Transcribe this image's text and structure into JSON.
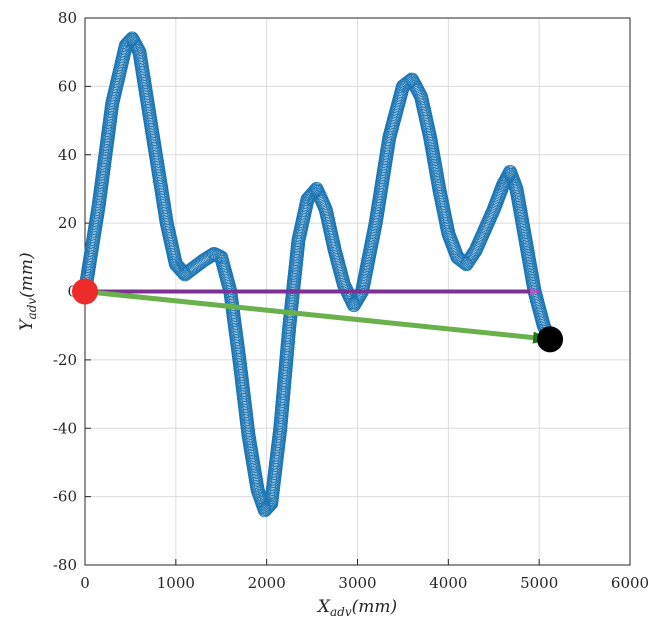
{
  "chart_data": {
    "type": "scatter",
    "xlabel": {
      "main": "X",
      "sub": "adv",
      "unit": "(mm)"
    },
    "ylabel": {
      "main": "Y",
      "sub": "adv",
      "unit": "(mm)"
    },
    "xlim": [
      0,
      6000
    ],
    "ylim": [
      -80,
      80
    ],
    "xticks": [
      0,
      1000,
      2000,
      3000,
      4000,
      5000,
      6000
    ],
    "yticks": [
      80,
      60,
      40,
      20,
      0,
      -20,
      -40,
      -60,
      -80
    ],
    "grid": true,
    "series": [
      {
        "marker": "open-circle",
        "color": "#1f77b4",
        "keypoints": [
          [
            0,
            0
          ],
          [
            150,
            25
          ],
          [
            300,
            55
          ],
          [
            450,
            72
          ],
          [
            520,
            74
          ],
          [
            600,
            70
          ],
          [
            750,
            45
          ],
          [
            900,
            20
          ],
          [
            1000,
            8
          ],
          [
            1100,
            5
          ],
          [
            1200,
            7
          ],
          [
            1300,
            9
          ],
          [
            1420,
            11
          ],
          [
            1500,
            10
          ],
          [
            1600,
            0
          ],
          [
            1700,
            -20
          ],
          [
            1800,
            -42
          ],
          [
            1900,
            -58
          ],
          [
            1980,
            -64
          ],
          [
            2050,
            -62
          ],
          [
            2150,
            -40
          ],
          [
            2250,
            -10
          ],
          [
            2350,
            15
          ],
          [
            2450,
            27
          ],
          [
            2550,
            30
          ],
          [
            2650,
            24
          ],
          [
            2750,
            12
          ],
          [
            2850,
            2
          ],
          [
            2960,
            -4
          ],
          [
            3050,
            0
          ],
          [
            3200,
            20
          ],
          [
            3350,
            45
          ],
          [
            3500,
            60
          ],
          [
            3600,
            62
          ],
          [
            3700,
            57
          ],
          [
            3800,
            45
          ],
          [
            3900,
            30
          ],
          [
            4000,
            17
          ],
          [
            4100,
            10
          ],
          [
            4200,
            8
          ],
          [
            4300,
            12
          ],
          [
            4400,
            18
          ],
          [
            4500,
            24
          ],
          [
            4600,
            31
          ],
          [
            4680,
            35
          ],
          [
            4750,
            30
          ],
          [
            4850,
            15
          ],
          [
            4950,
            0
          ],
          [
            5050,
            -10
          ],
          [
            5120,
            -14
          ]
        ]
      }
    ],
    "start_point": {
      "x": 0,
      "y": 0,
      "color": "#ee2b2b"
    },
    "end_point": {
      "x": 5120,
      "y": -14,
      "color": "#000000"
    },
    "arrows": [
      {
        "from": [
          0,
          0
        ],
        "to": [
          5000,
          0
        ],
        "color": "#7b3294",
        "head_color": "#a65ec1"
      },
      {
        "from": [
          0,
          0
        ],
        "to": [
          5120,
          -14
        ],
        "color": "#6ab04c",
        "head_color": "#1a7a1a"
      }
    ]
  }
}
